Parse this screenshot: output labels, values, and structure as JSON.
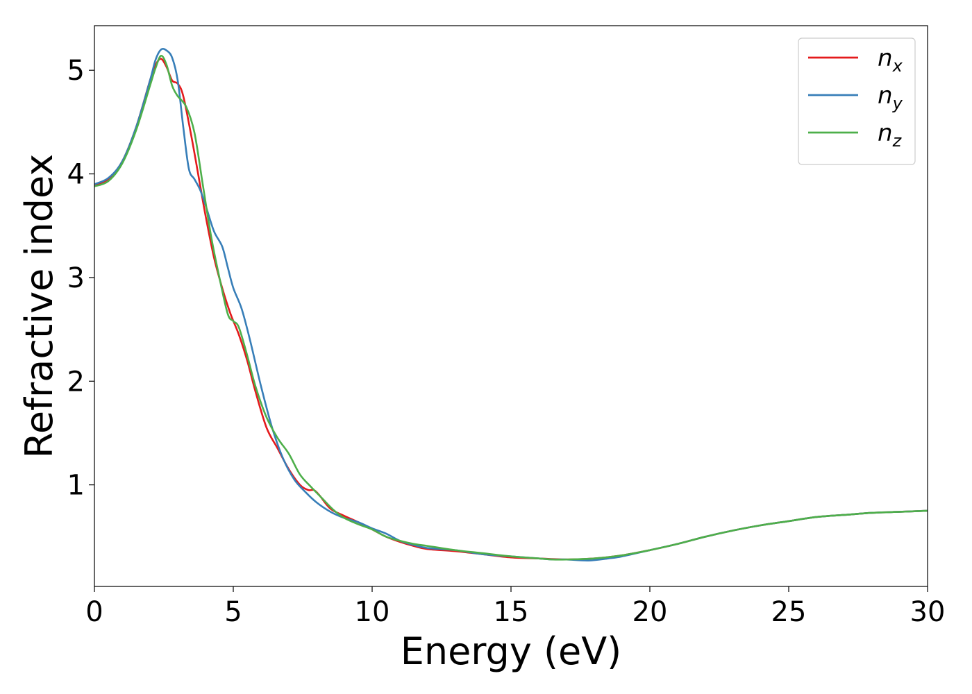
{
  "chart_data": {
    "type": "line",
    "title": "",
    "xlabel": "Energy (eV)",
    "ylabel": "Refractive index",
    "xlim": [
      0,
      30
    ],
    "ylim": [
      0.02,
      5.43
    ],
    "xticks": [
      0,
      5,
      10,
      15,
      20,
      25,
      30
    ],
    "yticks": [
      1,
      2,
      3,
      4,
      5
    ],
    "grid": false,
    "legend_position": "top-right",
    "series": [
      {
        "name": "n",
        "subscript": "x",
        "color": "#e41a1c",
        "x": [
          0,
          0.5,
          1.0,
          1.5,
          2.0,
          2.2,
          2.4,
          2.6,
          2.8,
          3.0,
          3.2,
          3.5,
          3.8,
          4.0,
          4.3,
          4.6,
          4.9,
          5.2,
          5.5,
          5.8,
          6.2,
          6.6,
          7.0,
          7.4,
          7.7,
          7.9,
          8.1,
          8.5,
          9.0,
          9.5,
          10.0,
          10.5,
          11.0,
          11.5,
          12.0,
          13.0,
          14.0,
          15.0,
          16.0,
          17.0,
          18.0,
          19.0,
          20.0,
          21.0,
          22.0,
          23.0,
          24.0,
          25.0,
          26.0,
          27.0,
          28.0,
          29.0,
          30.0
        ],
        "values": [
          3.89,
          3.95,
          4.12,
          4.45,
          4.9,
          5.05,
          5.11,
          5.03,
          4.9,
          4.87,
          4.75,
          4.35,
          3.9,
          3.6,
          3.2,
          2.9,
          2.65,
          2.45,
          2.2,
          1.9,
          1.55,
          1.35,
          1.15,
          1.0,
          0.95,
          0.95,
          0.9,
          0.77,
          0.7,
          0.64,
          0.57,
          0.5,
          0.45,
          0.41,
          0.38,
          0.36,
          0.33,
          0.3,
          0.29,
          0.28,
          0.29,
          0.32,
          0.37,
          0.43,
          0.5,
          0.56,
          0.61,
          0.65,
          0.69,
          0.71,
          0.73,
          0.74,
          0.75
        ]
      },
      {
        "name": "n",
        "subscript": "y",
        "color": "#377eb8",
        "x": [
          0,
          0.5,
          1.0,
          1.5,
          2.0,
          2.2,
          2.4,
          2.6,
          2.8,
          3.0,
          3.2,
          3.4,
          3.6,
          3.8,
          4.0,
          4.3,
          4.6,
          4.8,
          5.0,
          5.3,
          5.6,
          6.0,
          6.4,
          6.8,
          7.2,
          7.6,
          8.0,
          8.5,
          9.0,
          9.5,
          10.0,
          10.5,
          11.0,
          11.5,
          12.0,
          13.0,
          14.0,
          15.0,
          16.0,
          16.5,
          17.0,
          17.8,
          18.5,
          19.0,
          20.0,
          21.0,
          22.0,
          23.0,
          24.0,
          25.0,
          26.0,
          27.0,
          28.0,
          29.0,
          30.0
        ],
        "values": [
          3.9,
          3.96,
          4.12,
          4.45,
          4.9,
          5.1,
          5.2,
          5.19,
          5.12,
          4.9,
          4.45,
          4.05,
          3.95,
          3.85,
          3.7,
          3.45,
          3.3,
          3.1,
          2.9,
          2.7,
          2.4,
          1.95,
          1.55,
          1.25,
          1.05,
          0.93,
          0.83,
          0.74,
          0.68,
          0.64,
          0.58,
          0.53,
          0.46,
          0.42,
          0.39,
          0.37,
          0.33,
          0.31,
          0.29,
          0.28,
          0.28,
          0.27,
          0.29,
          0.31,
          0.37,
          0.43,
          0.5,
          0.56,
          0.61,
          0.65,
          0.69,
          0.71,
          0.73,
          0.74,
          0.75
        ]
      },
      {
        "name": "n",
        "subscript": "z",
        "color": "#4daf4a",
        "x": [
          0,
          0.5,
          1.0,
          1.5,
          2.0,
          2.2,
          2.4,
          2.6,
          2.8,
          3.0,
          3.3,
          3.6,
          3.9,
          4.2,
          4.5,
          4.8,
          5.0,
          5.2,
          5.5,
          5.8,
          6.2,
          6.6,
          7.0,
          7.4,
          7.8,
          8.2,
          8.6,
          9.0,
          9.5,
          10.0,
          10.5,
          11.0,
          11.5,
          12.0,
          13.0,
          14.0,
          15.0,
          16.0,
          16.5,
          17.0,
          18.0,
          19.0,
          20.0,
          21.0,
          22.0,
          23.0,
          24.0,
          25.0,
          26.0,
          27.0,
          28.0,
          29.0,
          30.0
        ],
        "values": [
          3.88,
          3.93,
          4.1,
          4.42,
          4.85,
          5.02,
          5.14,
          5.05,
          4.85,
          4.75,
          4.65,
          4.4,
          3.9,
          3.4,
          3.0,
          2.65,
          2.58,
          2.52,
          2.25,
          1.95,
          1.65,
          1.45,
          1.3,
          1.1,
          0.98,
          0.87,
          0.76,
          0.68,
          0.62,
          0.57,
          0.5,
          0.46,
          0.43,
          0.41,
          0.37,
          0.34,
          0.31,
          0.29,
          0.28,
          0.28,
          0.29,
          0.32,
          0.37,
          0.43,
          0.5,
          0.56,
          0.61,
          0.65,
          0.69,
          0.71,
          0.73,
          0.74,
          0.75
        ]
      }
    ]
  }
}
